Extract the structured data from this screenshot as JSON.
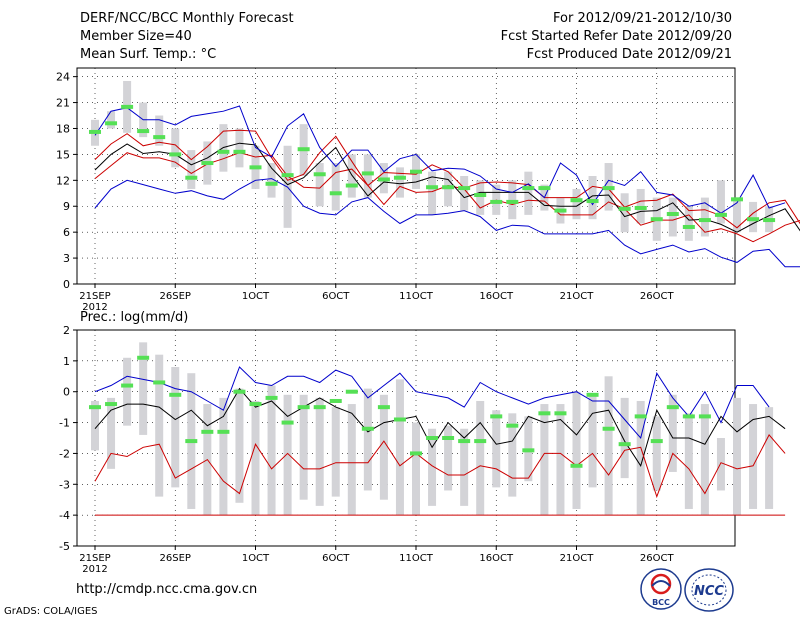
{
  "header": {
    "title": "DERF/NCC/BCC Monthly Forecast",
    "member_size": "Member Size=40",
    "variable": "Mean Surf. Temp.: °C",
    "period": "For 2012/09/21-2012/10/30",
    "started": "Fcst Started Refer Date 2012/09/20",
    "produced": "Fcst Produced Date 2012/09/21"
  },
  "footer": {
    "url": "http://cmdp.ncc.cma.gov.cn",
    "credit": "GrADS: COLA/IGES",
    "logo_bcc": "BCC",
    "logo_ncc": "NCC"
  },
  "colors": {
    "ensemble_bar": "#d3d3d7",
    "mean_marker": "#55e055",
    "max_line": "#0000cc",
    "min_line": "#0000cc",
    "upper_line": "#cc0000",
    "lower_line": "#cc0000",
    "median_line": "#000000"
  },
  "chart_data": [
    {
      "type": "line",
      "title": "Mean Surf. Temp.: °C",
      "ylabel": "°C",
      "ylim": [
        0,
        25
      ],
      "yticks": [
        0,
        3,
        6,
        9,
        12,
        15,
        18,
        21,
        24
      ],
      "x_tick_labels": [
        "21SEP",
        "26SEP",
        "1OCT",
        "6OCT",
        "11OCT",
        "16OCT",
        "21OCT",
        "26OCT"
      ],
      "x_tick_days": [
        0,
        5,
        10,
        15,
        20,
        25,
        30,
        35
      ],
      "year_label": "2012",
      "days": 40,
      "series": [
        {
          "name": "max",
          "values": [
            8.8,
            11,
            12,
            11.5,
            11,
            10.5,
            10.8,
            10.2,
            9.8,
            11,
            12,
            12.2,
            11.2,
            9,
            8.2,
            8,
            9.5,
            10,
            8.4,
            7,
            8,
            8,
            8.2,
            8.5,
            7.8,
            6.2,
            6.8,
            6.7,
            5.8,
            5.8,
            5.8,
            5.8,
            6.2,
            4.5,
            3.5,
            4,
            4.5,
            3.7,
            4.1,
            3.1,
            2.5,
            3.8,
            4,
            2,
            2
          ]
        },
        {
          "name": "lower",
          "values": [
            12.2,
            13.7,
            15.2,
            14.6,
            14.6,
            14.1,
            12.8,
            13.9,
            14.5,
            15.2,
            14.7,
            14.9,
            12.5,
            11.2,
            11.1,
            12.9,
            13.3,
            11.4,
            9.2,
            11.3,
            10.6,
            10.7,
            11.4,
            11,
            8.8,
            9.7,
            9.2,
            9.7,
            9.6,
            8,
            8,
            8,
            9.5,
            8.7,
            6.8,
            7.4,
            7.4,
            8,
            6,
            6.4,
            5.8,
            4.9,
            5.8,
            6.8,
            7.4,
            5.1,
            5.2
          ]
        },
        {
          "name": "median",
          "values": [
            13.2,
            15,
            16.2,
            15.1,
            15.3,
            15,
            13.8,
            14.6,
            15.8,
            16.3,
            16.1,
            13.4,
            11.5,
            12.3,
            14.1,
            15.8,
            12.6,
            10.2,
            11.8,
            11.6,
            11.8,
            12.4,
            12.1,
            10,
            10.6,
            10.6,
            10.6,
            10.6,
            9.1,
            9,
            9,
            10.2,
            10.3,
            7.8,
            8.4,
            8.5,
            9.4,
            7.4,
            7.5,
            6.9,
            6,
            7,
            7.9,
            8.7,
            6,
            6
          ]
        },
        {
          "name": "upper",
          "values": [
            14.4,
            16.2,
            17.4,
            16,
            16.4,
            16.1,
            14.4,
            15.9,
            17.7,
            17.8,
            17.7,
            14.6,
            12,
            12.7,
            15.2,
            17.1,
            14.2,
            11.4,
            12.9,
            12.8,
            12.7,
            13.8,
            13,
            11.1,
            11.7,
            11.8,
            11.7,
            11.5,
            10,
            10,
            10,
            11.3,
            11,
            8.9,
            9.6,
            9.7,
            10.4,
            8.5,
            8.6,
            7.9,
            6.5,
            8.2,
            9.4,
            9.7,
            6.8,
            6.8
          ]
        },
        {
          "name": "min_top",
          "values": [
            17.2,
            20,
            20.4,
            19,
            19,
            18.4,
            19.4,
            19.7,
            20,
            20.6,
            15.8,
            14.7,
            18.3,
            19.7,
            15.8,
            13.6,
            15.5,
            15.5,
            13,
            14.5,
            15,
            13.1,
            13.4,
            13.3,
            12.5,
            11,
            10.6,
            11.6,
            10,
            14,
            12.6,
            9.2,
            12,
            11.4,
            13,
            10.6,
            10.3,
            9,
            9.4,
            8.2,
            9.4,
            12.6,
            8.8,
            9.4
          ]
        }
      ],
      "mean_markers": [
        17.6,
        18.6,
        20.5,
        17.7,
        17,
        15,
        12.3,
        14,
        15.3,
        15.3,
        13.5,
        11.6,
        12.6,
        15.6,
        12.7,
        10.5,
        11.4,
        12.8,
        12.1,
        12.3,
        13,
        11.2,
        11.2,
        11.1,
        10.3,
        9.5,
        9.5,
        11.1,
        11.1,
        8.5,
        9.7,
        9.6,
        11.1,
        8.7,
        8.8,
        7.5,
        8.1,
        6.6,
        7.4,
        8,
        9.8,
        7.5,
        7.4
      ],
      "ensemble_ranges": [
        [
          16,
          19
        ],
        [
          18,
          20
        ],
        [
          17.5,
          23.5
        ],
        [
          17,
          21
        ],
        [
          16,
          19.5
        ],
        [
          13.5,
          18
        ],
        [
          11,
          15.5
        ],
        [
          11.5,
          16.5
        ],
        [
          13,
          18.5
        ],
        [
          13.5,
          18
        ],
        [
          11,
          16
        ],
        [
          10,
          14
        ],
        [
          6.5,
          16
        ],
        [
          12.5,
          18.5
        ],
        [
          9,
          14
        ],
        [
          8.5,
          14
        ],
        [
          10,
          15
        ],
        [
          10,
          15
        ],
        [
          10.5,
          14
        ],
        [
          10,
          13.5
        ],
        [
          11,
          15
        ],
        [
          8,
          13
        ],
        [
          9,
          13
        ],
        [
          8.5,
          12.5
        ],
        [
          8,
          12
        ],
        [
          8,
          11.5
        ],
        [
          7.5,
          12
        ],
        [
          8,
          13
        ],
        [
          8.5,
          11.5
        ],
        [
          7,
          10
        ],
        [
          7.5,
          11
        ],
        [
          7.5,
          12.5
        ],
        [
          8.5,
          14
        ],
        [
          6,
          10.5
        ],
        [
          7,
          11
        ],
        [
          5,
          10
        ],
        [
          5.5,
          10
        ],
        [
          5,
          9
        ],
        [
          5.5,
          10
        ],
        [
          7,
          12
        ],
        [
          6,
          10
        ],
        [
          6,
          9.5
        ],
        [
          6,
          9
        ]
      ]
    },
    {
      "type": "line",
      "title": "Prec.: log(mm/d)",
      "ylabel": "log(mm/d)",
      "ylim": [
        -5,
        2
      ],
      "yticks": [
        -5,
        -4,
        -3,
        -2,
        -1,
        0,
        1,
        2
      ],
      "x_tick_labels": [
        "21SEP",
        "26SEP",
        "1OCT",
        "6OCT",
        "11OCT",
        "16OCT",
        "21OCT",
        "26OCT"
      ],
      "x_tick_days": [
        0,
        5,
        10,
        15,
        20,
        25,
        30,
        35
      ],
      "year_label": "2012",
      "days": 40,
      "series": [
        {
          "name": "max",
          "values": [
            0,
            0.2,
            0.5,
            0.4,
            0.3,
            0.1,
            0,
            -0.3,
            -0.6,
            0.8,
            0.3,
            0.2,
            0.5,
            0.5,
            0.3,
            0.7,
            0.5,
            -0.2,
            0.2,
            0.6,
            0,
            -0.1,
            -0.2,
            -0.5,
            0.3,
            0,
            -0.2,
            -0.4,
            -0.2,
            -0.1,
            0,
            -0.3,
            -0.3,
            -0.9,
            -1.5,
            0.6,
            -0.2,
            -0.8,
            0,
            -1,
            0.2,
            0.2,
            -0.5
          ]
        },
        {
          "name": "median",
          "values": [
            -1.2,
            -0.6,
            -0.4,
            -0.4,
            -0.5,
            -0.9,
            -0.6,
            -1.1,
            -0.8,
            0.1,
            -0.5,
            -0.3,
            -0.8,
            -0.5,
            -0.2,
            -0.5,
            -0.7,
            -1.3,
            -1,
            -0.9,
            -0.8,
            -1.8,
            -1,
            -1.5,
            -1,
            -1.7,
            -1.6,
            -0.8,
            -1,
            -0.9,
            -1.4,
            -0.7,
            -0.6,
            -1.6,
            -2.4,
            -0.6,
            -1.5,
            -1.5,
            -1.7,
            -0.8,
            -1.3,
            -0.9,
            -0.8,
            -1.2
          ]
        },
        {
          "name": "lower",
          "values": [
            -2.9,
            -2,
            -2.1,
            -1.8,
            -1.7,
            -2.8,
            -2.5,
            -2.2,
            -2.9,
            -3.3,
            -1.7,
            -2.5,
            -2,
            -2.5,
            -2.5,
            -2.3,
            -2.3,
            -2.3,
            -1.6,
            -2.4,
            -2,
            -2.4,
            -2.7,
            -2.7,
            -2.4,
            -2.5,
            -2.8,
            -2.8,
            -2,
            -2,
            -2.4,
            -2,
            -2.7,
            -1.9,
            -1.8,
            -3.4,
            -2,
            -2.5,
            -3.3,
            -2.3,
            -2.5,
            -2.4,
            -1.4,
            -2
          ]
        },
        {
          "name": "min",
          "values": [
            -4,
            -4,
            -4,
            -4,
            -4,
            -4,
            -4,
            -4,
            -4,
            -4,
            -4,
            -4,
            -4,
            -4,
            -4,
            -4,
            -4,
            -4,
            -4,
            -4,
            -4,
            -4,
            -4,
            -4,
            -4,
            -4,
            -4,
            -4,
            -4,
            -4,
            -4,
            -4,
            -4,
            -4,
            -4,
            -4,
            -4,
            -4,
            -4,
            -4,
            -4,
            -4,
            -4,
            -4
          ]
        }
      ],
      "mean_markers": [
        -0.5,
        -0.4,
        0.2,
        1.1,
        0.3,
        -0.1,
        -1.6,
        -1.3,
        -1.3,
        0,
        -0.4,
        -0.2,
        -1,
        -0.5,
        -0.5,
        -0.3,
        0,
        -1.2,
        -0.5,
        -0.9,
        -2,
        -1.5,
        -1.5,
        -1.6,
        -1.6,
        -0.8,
        -1.1,
        -1.9,
        -0.7,
        -0.7,
        -2.4,
        -0.1,
        -1.2,
        -1.7,
        -0.8,
        -1.6,
        -0.5,
        -0.8,
        -0.8
      ],
      "ensemble_ranges": [
        [
          -1.9,
          -0.3
        ],
        [
          -2.5,
          -0.2
        ],
        [
          -1.1,
          1.1
        ],
        [
          -1.4,
          1.6
        ],
        [
          -3.4,
          1.2
        ],
        [
          -3.1,
          0.8
        ],
        [
          -3.8,
          0.6
        ],
        [
          -4,
          -0.4
        ],
        [
          -4,
          -0.2
        ],
        [
          -3.6,
          0.1
        ],
        [
          -4,
          -0.3
        ],
        [
          -4,
          0.2
        ],
        [
          -4,
          -0.1
        ],
        [
          -3.5,
          -0.1
        ],
        [
          -3.7,
          -0.2
        ],
        [
          -3.4,
          -0.5
        ],
        [
          -4,
          -0.4
        ],
        [
          -3.2,
          0.1
        ],
        [
          -3.5,
          -0.1
        ],
        [
          -4,
          0.4
        ],
        [
          -4,
          -1
        ],
        [
          -3.7,
          -1.2
        ],
        [
          -3.2,
          -1.1
        ],
        [
          -3.7,
          -1.2
        ],
        [
          -4,
          -0.3
        ],
        [
          -3.1,
          -0.6
        ],
        [
          -3.4,
          -0.7
        ],
        [
          -2.9,
          -0.8
        ],
        [
          -4,
          -0.4
        ],
        [
          -4,
          -0.4
        ],
        [
          -3.8,
          0
        ],
        [
          -3.1,
          -0.1
        ],
        [
          -4,
          0.5
        ],
        [
          -2.8,
          -0.2
        ],
        [
          -4,
          -0.3
        ],
        [
          -3.2,
          -0.8
        ],
        [
          -2.6,
          -0.1
        ],
        [
          -3.8,
          -0.7
        ],
        [
          -4,
          -0.4
        ],
        [
          -3.2,
          -1.5
        ],
        [
          -4,
          -0.2
        ],
        [
          -3.8,
          -0.4
        ],
        [
          -3.8,
          -0.5
        ]
      ]
    }
  ]
}
